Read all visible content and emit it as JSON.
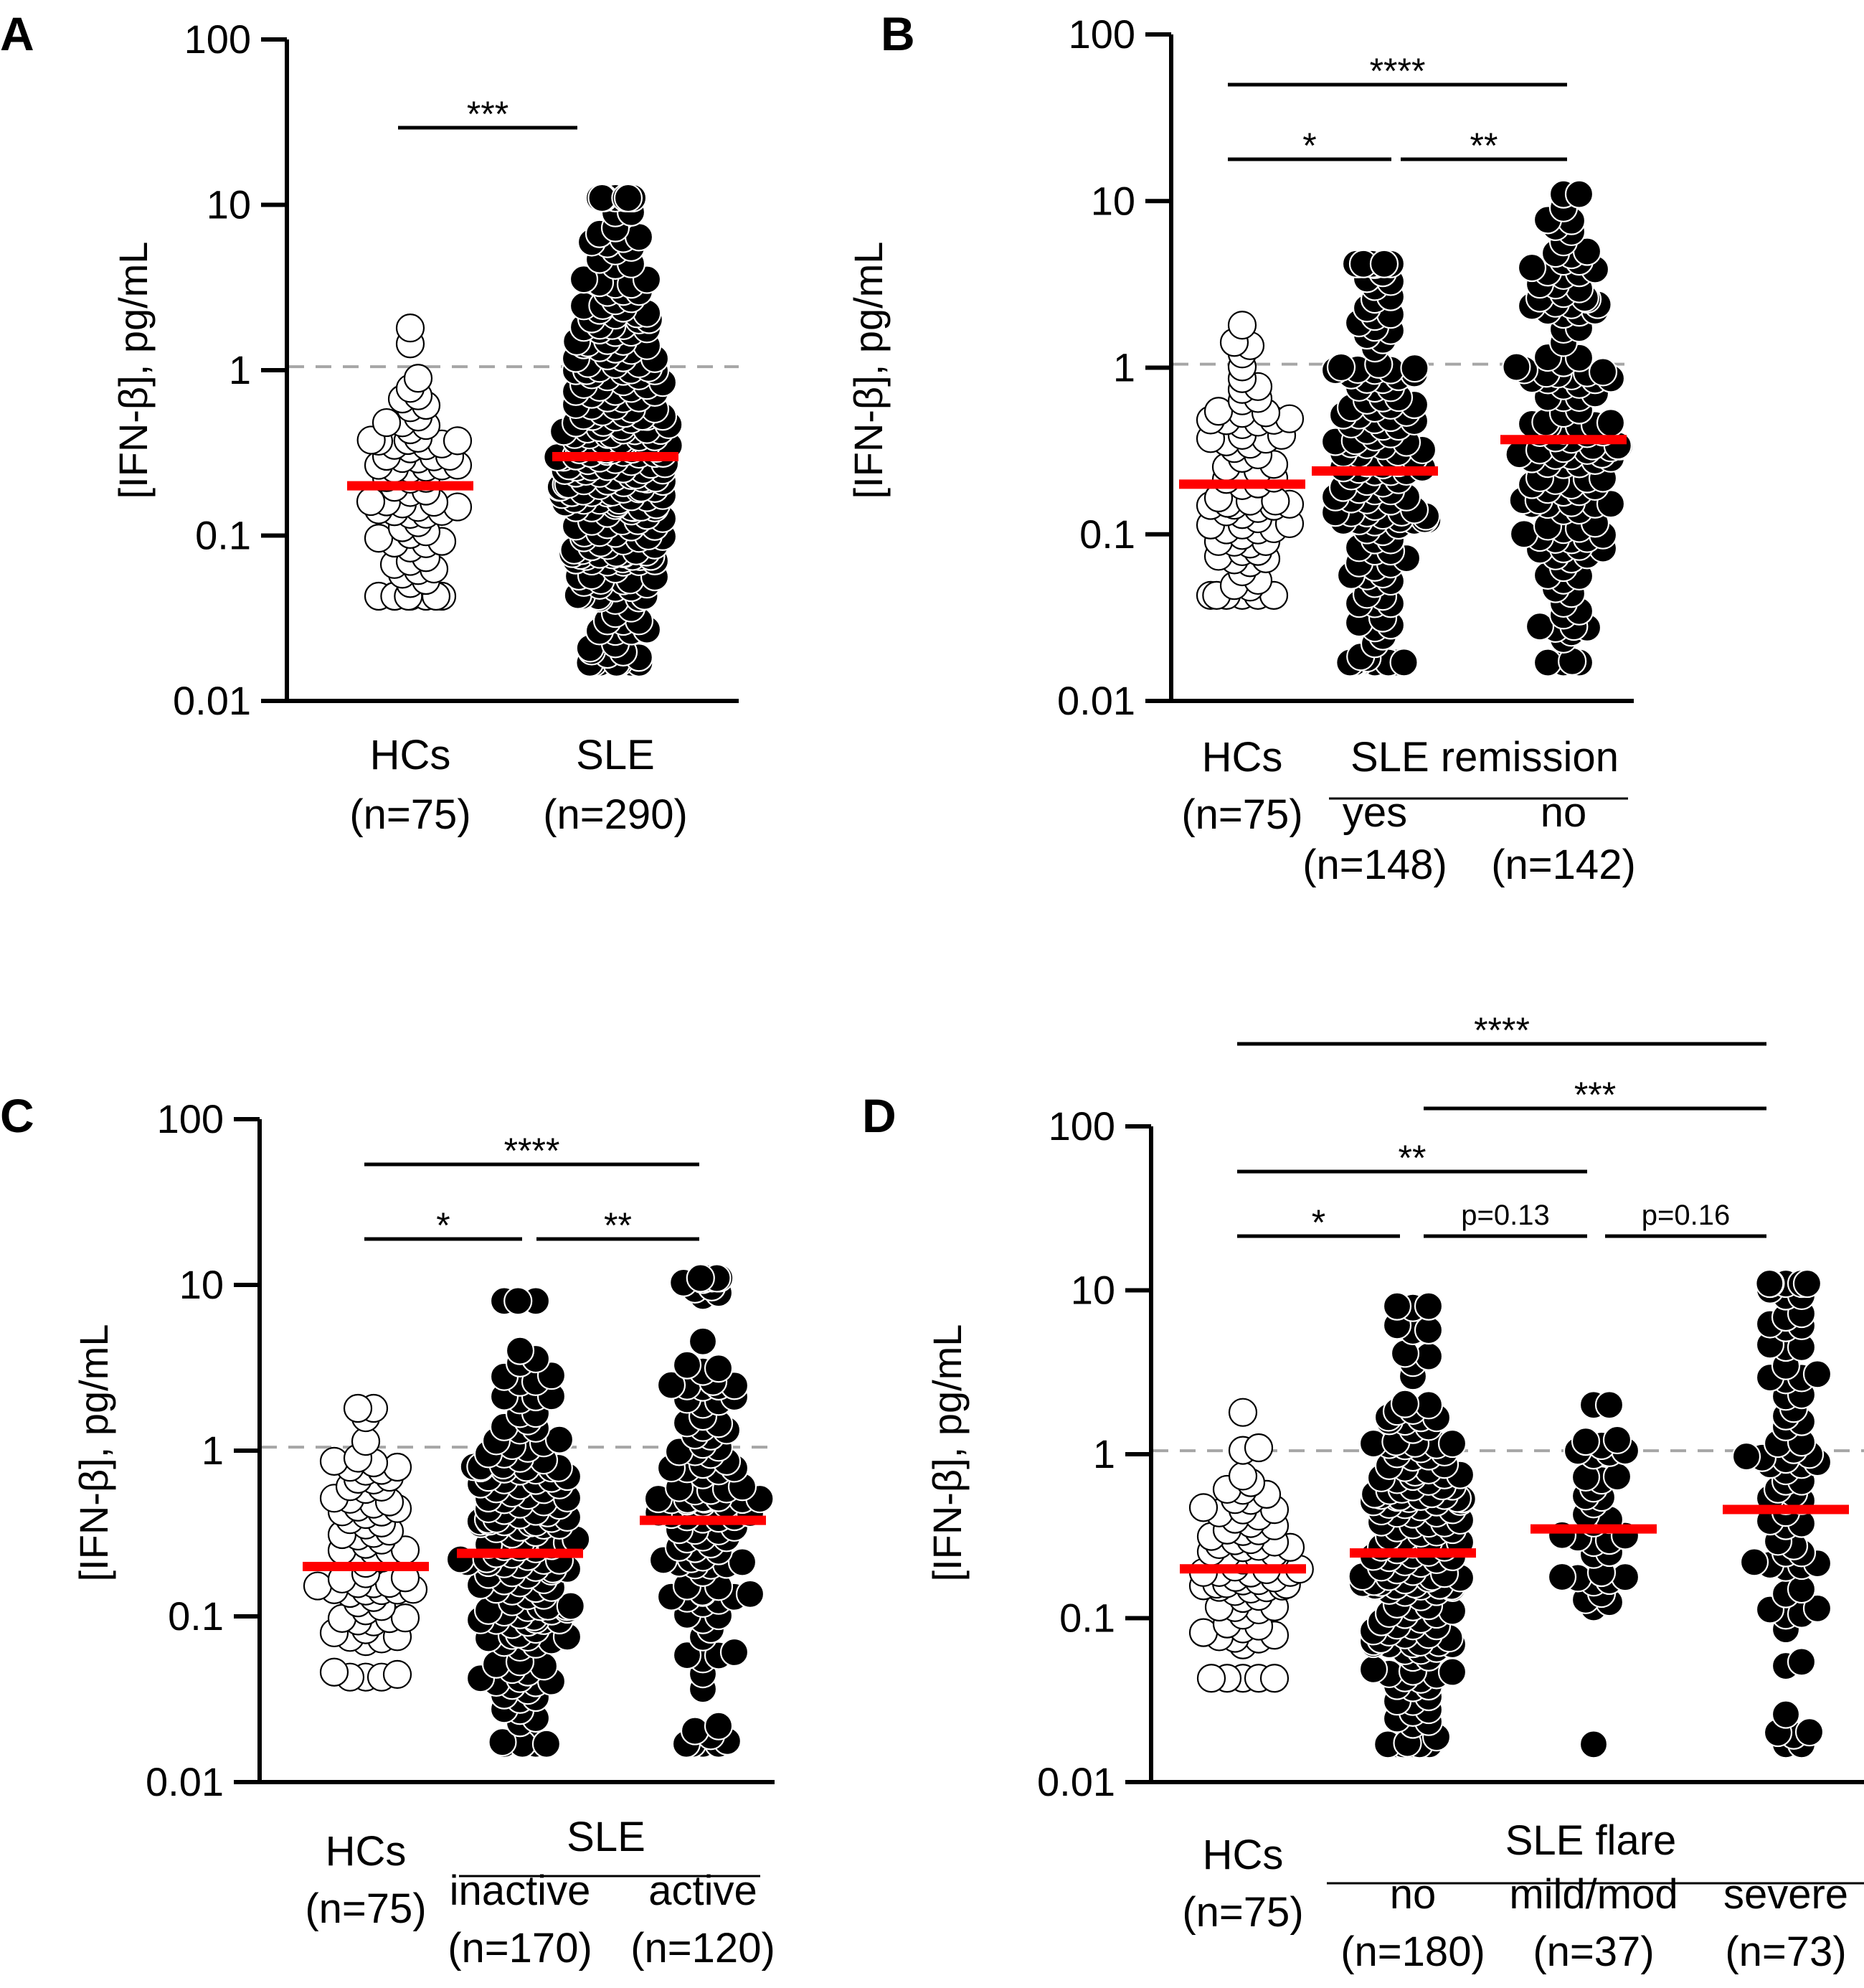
{
  "figure": {
    "colors": {
      "median": "#ff0000",
      "dots_hc": "#ffffff",
      "dots_sle": "#000000",
      "axis": "#000000",
      "threshold": "#a6a6a6"
    },
    "y_axis": {
      "label": "[IFN-β], pg/mL",
      "scale": "log",
      "ylim": [
        0.01,
        100
      ],
      "ticks": [
        "100",
        "10",
        "1",
        "0.1",
        "0.01"
      ],
      "tick_values": [
        100,
        10,
        1,
        0.1,
        0.01
      ],
      "threshold": 1.05
    }
  },
  "chart_data": [
    {
      "panel": "A",
      "type": "scatter",
      "ylabel": "[IFN-β], pg/mL",
      "ylim": [
        0.01,
        100
      ],
      "yscale": "log",
      "groups": [
        {
          "label": "HCs",
          "n_label": "(n=75)",
          "n": 75,
          "fill": "open",
          "median": 0.2,
          "range": [
            0.043,
            1.8
          ]
        },
        {
          "label": "SLE",
          "n_label": "(n=290)",
          "n": 290,
          "fill": "filled",
          "median": 0.3,
          "range": [
            0.017,
            11
          ]
        }
      ],
      "comparisons": [
        {
          "from": "HCs",
          "to": "SLE",
          "label": "***"
        }
      ]
    },
    {
      "panel": "B",
      "type": "scatter",
      "ylabel": "[IFN-β], pg/mL",
      "ylim": [
        0.01,
        100
      ],
      "yscale": "log",
      "header": "SLE remission",
      "groups": [
        {
          "label": "HCs",
          "n_label": "(n=75)",
          "n": 75,
          "fill": "open",
          "median": 0.2,
          "range": [
            0.043,
            1.8
          ]
        },
        {
          "label": "yes",
          "n_label": "(n=148)",
          "n": 148,
          "fill": "filled",
          "median": 0.24,
          "range": [
            0.017,
            4.2
          ]
        },
        {
          "label": "no",
          "n_label": "(n=142)",
          "n": 142,
          "fill": "filled",
          "median": 0.37,
          "range": [
            0.017,
            11
          ]
        }
      ],
      "comparisons": [
        {
          "from": "HCs",
          "to": "no",
          "label": "****"
        },
        {
          "from": "HCs",
          "to": "yes",
          "label": "*"
        },
        {
          "from": "yes",
          "to": "no",
          "label": "**"
        }
      ]
    },
    {
      "panel": "C",
      "type": "scatter",
      "ylabel": "[IFN-β], pg/mL",
      "ylim": [
        0.01,
        100
      ],
      "yscale": "log",
      "header": "SLE",
      "groups": [
        {
          "label": "HCs",
          "n_label": "(n=75)",
          "n": 75,
          "fill": "open",
          "median": 0.2,
          "range": [
            0.043,
            1.8
          ]
        },
        {
          "label": "inactive",
          "n_label": "(n=170)",
          "n": 170,
          "fill": "filled",
          "median": 0.24,
          "range": [
            0.017,
            8
          ]
        },
        {
          "label": "active",
          "n_label": "(n=120)",
          "n": 120,
          "fill": "filled",
          "median": 0.38,
          "range": [
            0.017,
            11
          ]
        }
      ],
      "comparisons": [
        {
          "from": "HCs",
          "to": "active",
          "label": "****"
        },
        {
          "from": "HCs",
          "to": "inactive",
          "label": "*"
        },
        {
          "from": "inactive",
          "to": "active",
          "label": "**"
        }
      ]
    },
    {
      "panel": "D",
      "type": "scatter",
      "ylabel": "[IFN-β], pg/mL",
      "ylim": [
        0.01,
        100
      ],
      "yscale": "log",
      "header": "SLE flare",
      "groups": [
        {
          "label": "HCs",
          "n_label": "(n=75)",
          "n": 75,
          "fill": "open",
          "median": 0.2,
          "range": [
            0.043,
            1.8
          ]
        },
        {
          "label": "no",
          "n_label": "(n=180)",
          "n": 180,
          "fill": "filled",
          "median": 0.25,
          "range": [
            0.017,
            8
          ]
        },
        {
          "label": "mild/mod",
          "n_label": "(n=37)",
          "n": 37,
          "fill": "filled",
          "median": 0.35,
          "range": [
            0.017,
            2
          ]
        },
        {
          "label": "severe",
          "n_label": "(n=73)",
          "n": 73,
          "fill": "filled",
          "median": 0.46,
          "range": [
            0.017,
            11
          ]
        }
      ],
      "comparisons": [
        {
          "from": "HCs",
          "to": "severe",
          "label": "****"
        },
        {
          "from": "no",
          "to": "severe",
          "label": "***"
        },
        {
          "from": "HCs",
          "to": "mild/mod",
          "label": "**"
        },
        {
          "from": "HCs",
          "to": "no",
          "label": "*"
        },
        {
          "from": "no",
          "to": "mild/mod",
          "label": "p=0.13"
        },
        {
          "from": "mild/mod",
          "to": "severe",
          "label": "p=0.16"
        }
      ]
    }
  ]
}
